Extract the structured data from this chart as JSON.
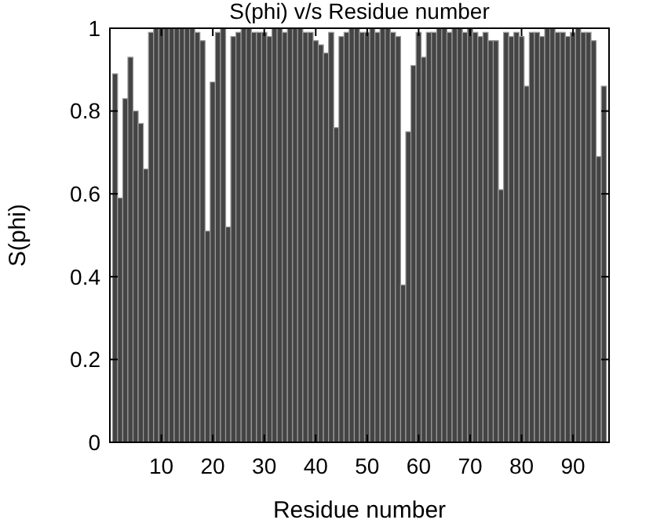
{
  "chart_data": {
    "type": "bar",
    "title": "S(phi) v/s Residue number",
    "xlabel": "Residue number",
    "ylabel": "S(phi)",
    "x": [
      1,
      2,
      3,
      4,
      5,
      6,
      7,
      8,
      9,
      10,
      11,
      12,
      13,
      14,
      15,
      16,
      17,
      18,
      19,
      20,
      21,
      22,
      23,
      24,
      25,
      26,
      27,
      28,
      29,
      30,
      31,
      32,
      33,
      34,
      35,
      36,
      37,
      38,
      39,
      40,
      41,
      42,
      43,
      44,
      45,
      46,
      47,
      48,
      49,
      50,
      51,
      52,
      53,
      54,
      55,
      56,
      57,
      58,
      59,
      60,
      61,
      62,
      63,
      64,
      65,
      66,
      67,
      68,
      69,
      70,
      71,
      72,
      73,
      74,
      75,
      76,
      77,
      78,
      79,
      80,
      81,
      82,
      83,
      84,
      85,
      86,
      87,
      88,
      89,
      90,
      91,
      92,
      93,
      94,
      95,
      96
    ],
    "values": [
      0.89,
      0.59,
      0.83,
      0.93,
      0.8,
      0.77,
      0.66,
      0.99,
      1,
      1,
      1,
      1,
      1,
      1,
      1,
      1,
      0.99,
      0.97,
      0.51,
      0.87,
      0.99,
      1,
      0.52,
      0.98,
      0.99,
      1,
      1,
      0.99,
      0.99,
      0.99,
      0.98,
      1,
      1,
      0.99,
      1,
      1,
      1,
      0.99,
      0.99,
      0.97,
      0.96,
      0.94,
      0.99,
      0.76,
      0.98,
      0.99,
      1,
      1,
      0.99,
      0.99,
      1,
      0.99,
      1,
      1,
      0.99,
      0.98,
      0.38,
      0.75,
      0.91,
      0.99,
      0.93,
      0.99,
      0.99,
      1,
      1,
      0.99,
      1,
      1,
      0.99,
      1,
      0.99,
      0.98,
      0.99,
      0.97,
      0.97,
      0.61,
      0.99,
      0.98,
      0.99,
      0.98,
      0.86,
      0.99,
      0.99,
      0.98,
      1,
      1,
      0.99,
      0.99,
      0.98,
      0.99,
      1,
      0.99,
      0.99,
      0.97,
      0.69,
      0.86
    ],
    "color": "#444444",
    "xlim": [
      0,
      97
    ],
    "xticks": [
      10,
      20,
      30,
      40,
      50,
      60,
      70,
      80,
      90
    ],
    "ylim": [
      0,
      1
    ],
    "yticks": [
      0,
      {
        "value": 0.2,
        "label": "0.2"
      },
      {
        "value": 0.4,
        "label": "0.4"
      },
      {
        "value": 0.6,
        "label": "0.6"
      },
      {
        "value": 0.8,
        "label": "0.8"
      },
      1
    ],
    "grid": false
  }
}
